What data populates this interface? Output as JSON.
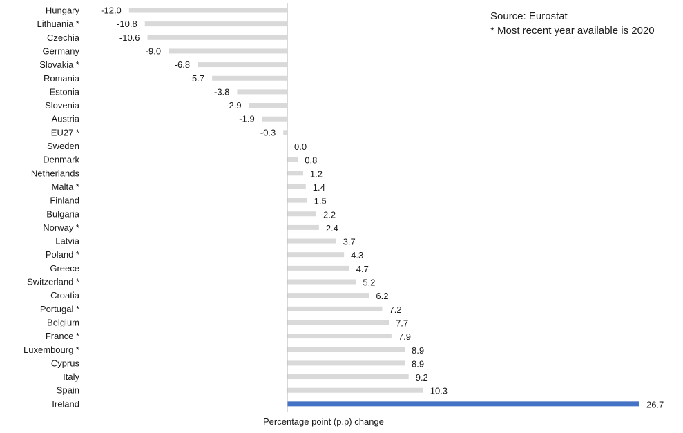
{
  "notes": {
    "source": "Source: Eurostat",
    "footnote": "* Most recent year available is 2020"
  },
  "colors": {
    "bar": "#d9d9d9",
    "highlight": "#4472c4",
    "axis": "#bfbfbf",
    "text": "#1a1a1a"
  },
  "chart_data": {
    "type": "bar",
    "orientation": "horizontal",
    "title": "",
    "xlabel": "Percentage point (p.p) change",
    "ylabel": "",
    "xlim": [
      -12,
      26.7
    ],
    "grid": false,
    "legend": "none",
    "highlight_category": "Ireland",
    "categories": [
      "Hungary",
      "Lithuania *",
      "Czechia",
      "Germany",
      "Slovakia *",
      "Romania",
      "Estonia",
      "Slovenia",
      "Austria",
      "EU27 *",
      "Sweden",
      "Denmark",
      "Netherlands",
      "Malta *",
      "Finland",
      "Bulgaria",
      "Norway *",
      "Latvia",
      "Poland *",
      "Greece",
      "Switzerland *",
      "Croatia",
      "Portugal *",
      "Belgium",
      "France *",
      "Luxembourg *",
      "Cyprus",
      "Italy",
      "Spain",
      "Ireland"
    ],
    "values": [
      -12.0,
      -10.8,
      -10.6,
      -9.0,
      -6.8,
      -5.7,
      -3.8,
      -2.9,
      -1.9,
      -0.3,
      0.0,
      0.8,
      1.2,
      1.4,
      1.5,
      2.2,
      2.4,
      3.7,
      4.3,
      4.7,
      5.2,
      6.2,
      7.2,
      7.7,
      7.9,
      8.9,
      8.9,
      9.2,
      10.3,
      26.7
    ]
  }
}
